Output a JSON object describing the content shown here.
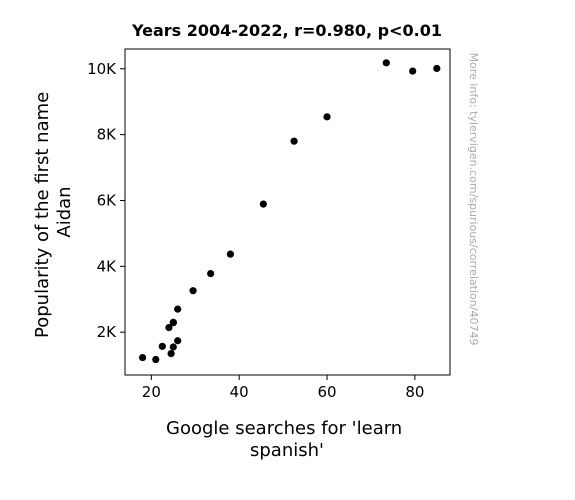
{
  "chart_data": {
    "type": "scatter",
    "title": "Years 2004-2022, r=0.980, p<0.01",
    "xlabel": [
      "Google searches for 'learn",
      "spanish'"
    ],
    "ylabel": [
      "Popularity of the first name",
      "Aidan"
    ],
    "xlim": [
      14,
      88
    ],
    "ylim": [
      700,
      10600
    ],
    "x_ticks": [
      20,
      40,
      60,
      80
    ],
    "x_tick_labels": [
      "20",
      "40",
      "60",
      "80"
    ],
    "y_ticks": [
      2000,
      4000,
      6000,
      8000,
      10000
    ],
    "y_tick_labels": [
      "2K",
      "4K",
      "6K",
      "8K",
      "10K"
    ],
    "grid": false,
    "marker_color": "#000000",
    "points": [
      {
        "x": 18,
        "y": 1230
      },
      {
        "x": 21,
        "y": 1170
      },
      {
        "x": 22.5,
        "y": 1570
      },
      {
        "x": 24.5,
        "y": 1350
      },
      {
        "x": 25,
        "y": 1550
      },
      {
        "x": 26,
        "y": 1740
      },
      {
        "x": 24,
        "y": 2140
      },
      {
        "x": 25,
        "y": 2290
      },
      {
        "x": 25,
        "y": 2300
      },
      {
        "x": 26,
        "y": 2700
      },
      {
        "x": 29.5,
        "y": 3260
      },
      {
        "x": 33.5,
        "y": 3780
      },
      {
        "x": 38,
        "y": 4370
      },
      {
        "x": 45.5,
        "y": 5890
      },
      {
        "x": 52.5,
        "y": 7800
      },
      {
        "x": 60,
        "y": 8540
      },
      {
        "x": 73.5,
        "y": 10180
      },
      {
        "x": 79.5,
        "y": 9930
      },
      {
        "x": 85,
        "y": 10010
      }
    ]
  },
  "watermark": "More info: tylervigen.com/spurious/correlation/40749"
}
